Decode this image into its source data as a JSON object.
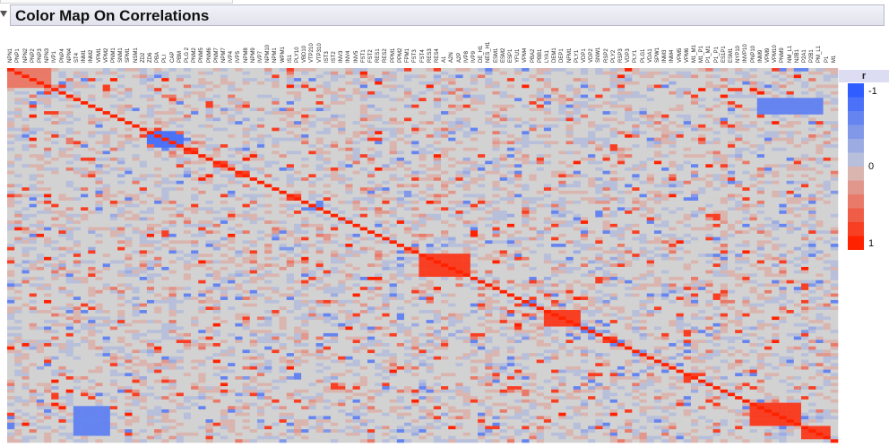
{
  "report": {
    "title": "Color Map On Correlations"
  },
  "chart_data": {
    "type": "heatmap",
    "title": "Color Map On Correlations",
    "value_name": "r",
    "range": [
      -1,
      1
    ],
    "variables": [
      "NPN1",
      "PNP1",
      "NPN2",
      "PNP2",
      "PNP3",
      "NPN3",
      "IVP1",
      "PNP4",
      "NPN4",
      "ST4",
      "INM1",
      "INM2",
      "VPM1",
      "VPM2",
      "PNM1",
      "SNM1",
      "SPM1",
      "NSM1",
      "ZD2",
      "ZD6",
      "PBA",
      "PLI",
      "CAP",
      "PBM",
      "PLG 2",
      "PNM2",
      "PNM5",
      "PNM6",
      "PNM7",
      "NPM7",
      "IVP4",
      "IVP5",
      "NPM8",
      "NPM9",
      "IVP7",
      "NPM10",
      "NPM1",
      "WPM1",
      "IS1",
      "PLY10",
      "VBD10",
      "VTP210",
      "VTP310",
      "IST3",
      "IST2",
      "INV3",
      "INV4",
      "INV5",
      "FST1",
      "FST2",
      "RES1",
      "RES2",
      "PPM1",
      "PPM2",
      "FPM1",
      "FST3",
      "FST4",
      "RES3",
      "RES4",
      "A1",
      "A2N",
      "A2P",
      "IVP8",
      "IVP9",
      "DE_H1",
      "NES_H1",
      "ESM1",
      "ESM2",
      "ESP1",
      "YFU1",
      "VPM4",
      "PBA2",
      "PBB1",
      "LYA1",
      "DEM1",
      "DEP1",
      "NFM1",
      "PLY1",
      "VDP1",
      "VDP2",
      "SNW1",
      "RSP2",
      "PLY2",
      "RSP3",
      "VDP3",
      "PLY1",
      "PLG1",
      "VDA1",
      "SPW1",
      "INM3",
      "INM4",
      "VPM5",
      "VPM6",
      "M1_M1",
      "M1_P1",
      "P1_M1",
      "P1_P1",
      "ES1P1",
      "ESM1",
      "NYP10",
      "INVP10",
      "PNP10",
      "INM9",
      "VPM9",
      "VPM10",
      "PNM9",
      "NM_L1",
      "N2B1",
      "P2A1",
      "P2B1",
      "PM_L1",
      "P1",
      "M1"
    ],
    "color_scale": {
      "negative": "#2f5dff",
      "zero": "#d2d2d2",
      "positive": "#ff2200"
    },
    "legend": {
      "title": "r",
      "ticks": [
        "-1",
        "0",
        "1"
      ],
      "placement": "right",
      "steps": 12
    },
    "diagonal": 1,
    "notable_blocks": [
      {
        "rows": [
          0,
          5
        ],
        "cols": [
          0,
          5
        ],
        "r": 0.5
      },
      {
        "rows": [
          19,
          23
        ],
        "cols": [
          19,
          23
        ],
        "r": 0.7
      },
      {
        "rows": [
          56,
          62
        ],
        "cols": [
          56,
          62
        ],
        "r": 0.75
      },
      {
        "rows": [
          73,
          77
        ],
        "cols": [
          73,
          77
        ],
        "r": 0.85
      },
      {
        "rows": [
          101,
          107
        ],
        "cols": [
          101,
          107
        ],
        "r": 0.85
      },
      {
        "rows": [
          108,
          111
        ],
        "cols": [
          108,
          111
        ],
        "r": 0.9
      },
      {
        "rows": [
          9,
          13
        ],
        "cols": [
          102,
          110
        ],
        "r": -0.6
      },
      {
        "rows": [
          20,
          22
        ],
        "cols": [
          19,
          23
        ],
        "r": -0.85
      }
    ]
  }
}
